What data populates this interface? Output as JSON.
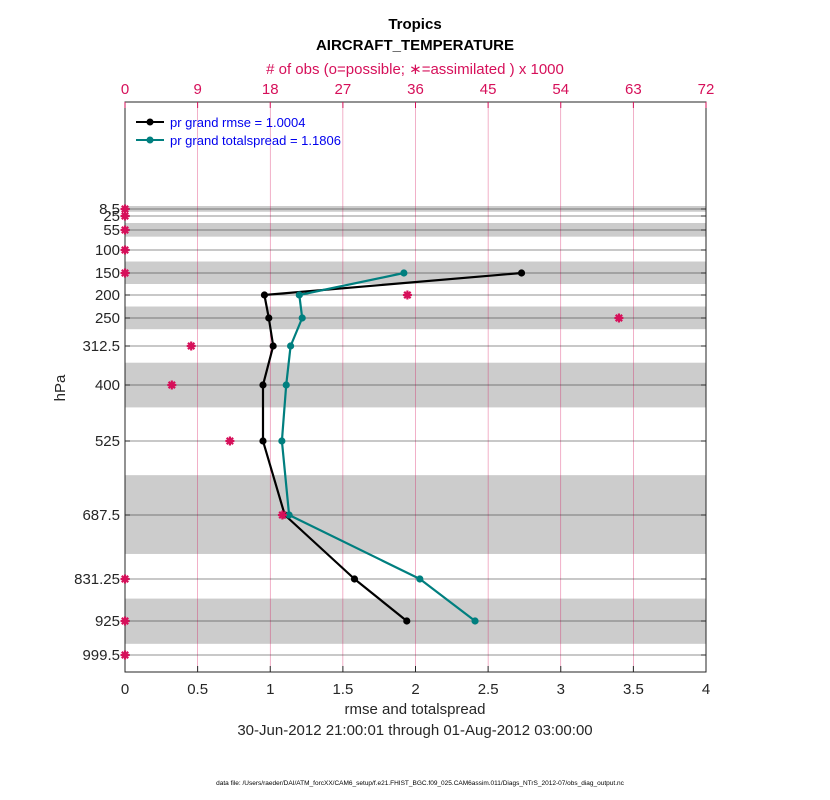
{
  "chart_data": {
    "type": "line",
    "title": "Tropics",
    "subtitle": "AIRCRAFT_TEMPERATURE",
    "top_axis_label": "# of obs (o=possible; ∗=assimilated ) x 1000",
    "xlabel": "rmse and totalspread",
    "ylabel": "hPa",
    "date_range": "30-Jun-2012 21:00:01 through 01-Aug-2012 03:00:00",
    "footer": "data file: /Users/raeder/DAI/ATM_forcXX/CAM6_setup/f.e21.FHIST_BGC.f09_025.CAM6assim.011/Diags_NTrS_2012-07/obs_diag_output.nc",
    "xlim": [
      0,
      4
    ],
    "x_ticks": [
      0,
      0.5,
      1,
      1.5,
      2,
      2.5,
      3,
      3.5,
      4
    ],
    "x_tick_labels": [
      "0",
      "0.5",
      "1",
      "1.5",
      "2",
      "2.5",
      "3",
      "3.5",
      "4"
    ],
    "top_xlim": [
      0,
      72
    ],
    "top_ticks": [
      0,
      9,
      18,
      27,
      36,
      45,
      54,
      63,
      72
    ],
    "top_tick_labels": [
      "0",
      "9",
      "18",
      "27",
      "36",
      "45",
      "54",
      "63",
      "72"
    ],
    "levels": [
      8.5,
      25,
      55,
      100,
      150,
      200,
      250,
      312.5,
      400,
      525,
      687.5,
      831.25,
      925,
      999.5
    ],
    "level_labels": [
      "8.5",
      "25",
      "55",
      "100",
      "150",
      "200",
      "250",
      "312.5",
      "400",
      "525",
      "687.5",
      "831.25",
      "925",
      "999.5"
    ],
    "shaded_bands": [
      [
        0,
        15
      ],
      [
        40,
        70
      ],
      [
        125,
        175
      ],
      [
        225,
        275
      ],
      [
        350,
        450
      ],
      [
        600,
        775
      ],
      [
        875,
        975
      ]
    ],
    "series": [
      {
        "name": "pr grand rmse = 1.0004",
        "color": "#000000",
        "levels": [
          150,
          200,
          250,
          312.5,
          400,
          525,
          687.5,
          831.25,
          925
        ],
        "values": [
          2.73,
          0.96,
          0.99,
          1.02,
          0.95,
          0.95,
          1.1,
          1.58,
          1.94
        ]
      },
      {
        "name": "pr grand totalspread = 1.1806",
        "color": "#007f7f",
        "levels": [
          150,
          200,
          250,
          312.5,
          400,
          525,
          687.5,
          831.25,
          925
        ],
        "values": [
          1.92,
          1.2,
          1.22,
          1.14,
          1.11,
          1.08,
          1.13,
          2.03,
          2.41
        ]
      }
    ],
    "obs_counts": {
      "color": "#d6105a",
      "levels": [
        8.5,
        25,
        55,
        100,
        150,
        200,
        250,
        312.5,
        400,
        525,
        687.5,
        831.25,
        925,
        999.5
      ],
      "values_thousands": [
        0,
        0,
        0,
        0,
        0,
        35,
        61.2,
        8.2,
        5.8,
        13,
        19.5,
        0,
        0,
        0
      ]
    }
  }
}
